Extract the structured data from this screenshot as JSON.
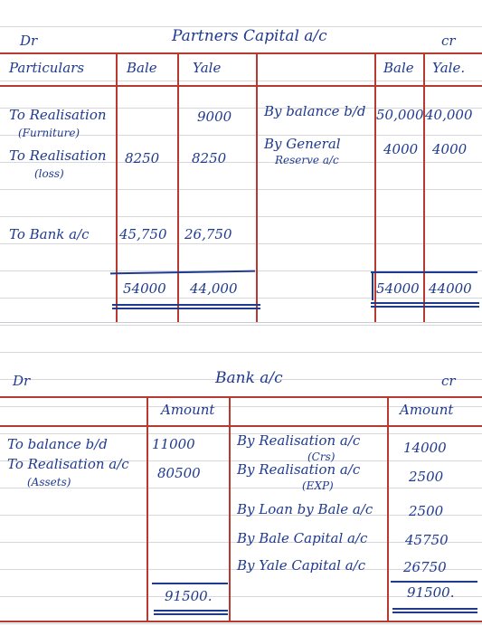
{
  "capital_account": {
    "dr": "Dr",
    "title": "Partners Capital a/c",
    "cr": "cr",
    "headers": {
      "particulars": "Particulars",
      "bale": "Bale",
      "yale": "Yale",
      "bale_right": "Bale",
      "yale_right": "Yale."
    },
    "debit_rows": [
      {
        "particular": "To Realisation",
        "sub": "(Furniture)",
        "bale": "",
        "yale": "9000"
      },
      {
        "particular": "To Realisation",
        "sub": "(loss)",
        "bale": "8250",
        "yale": "8250"
      },
      {
        "particular": "To Bank a/c",
        "sub": "",
        "bale": "45,750",
        "yale": "26,750"
      }
    ],
    "credit_rows": [
      {
        "particular": "By balance b/d",
        "sub": "",
        "bale": "50,000",
        "yale": "40,000"
      },
      {
        "particular": "By General",
        "sub": "Reserve a/c",
        "bale": "4000",
        "yale": "4000"
      }
    ],
    "totals": {
      "dr_bale": "54000",
      "dr_yale": "44,000",
      "cr_bale": "54000",
      "cr_yale": "44000"
    }
  },
  "bank_account": {
    "dr": "Dr",
    "title": "Bank a/c",
    "cr": "cr",
    "header_amount_left": "Amount",
    "header_amount_right": "Amount",
    "debit_rows": [
      {
        "particular": "To balance b/d",
        "sub": "",
        "amount": "11000"
      },
      {
        "particular": "To Realisation a/c",
        "sub": "(Assets)",
        "amount": "80500"
      }
    ],
    "credit_rows": [
      {
        "particular": "By Realisation a/c",
        "sub": "(Crs)",
        "amount": "14000"
      },
      {
        "particular": "By Realisation a/c",
        "sub": "(EXP)",
        "amount": "2500"
      },
      {
        "particular": "By Loan by Bale a/c",
        "sub": "",
        "amount": "2500"
      },
      {
        "particular": "By Bale Capital a/c",
        "sub": "",
        "amount": "45750"
      },
      {
        "particular": "By Yale Capital a/c",
        "sub": "",
        "amount": "26750"
      }
    ],
    "total_left": "91500.",
    "total_right": "91500."
  },
  "colors": {
    "ink": "#1f3a8f",
    "rule": "#b8392f",
    "paper_line": "#d8d8dc"
  }
}
